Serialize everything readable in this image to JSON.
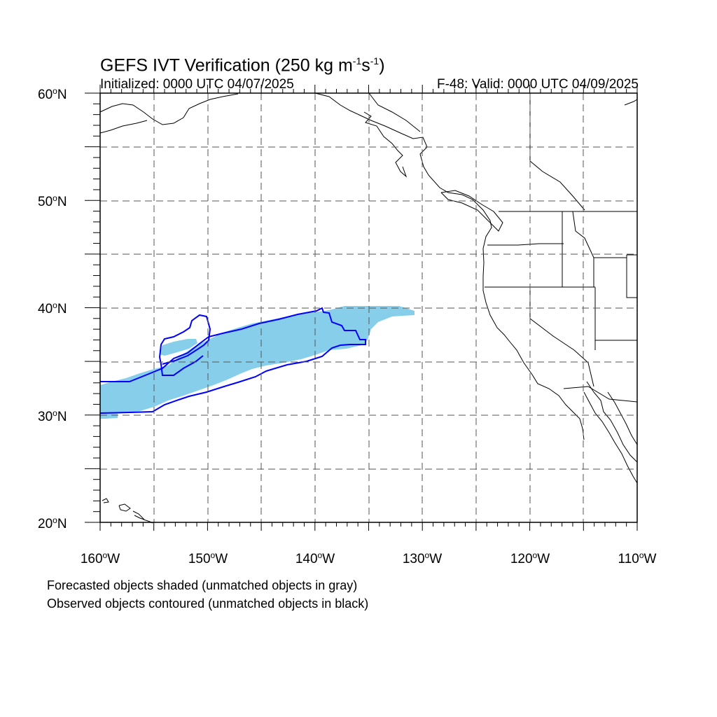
{
  "title": {
    "main": "GEFS IVT Verification (250 kg m",
    "exp1": "-1",
    "mid": "s",
    "exp2": "-1",
    "close": ")"
  },
  "subtitle_left": "Initialized: 0000 UTC 04/07/2025",
  "subtitle_right": "F-48: Valid: 0000 UTC 04/09/2025",
  "lat_labels": [
    {
      "num": "60",
      "hem": "N"
    },
    {
      "num": "50",
      "hem": "N"
    },
    {
      "num": "40",
      "hem": "N"
    },
    {
      "num": "30",
      "hem": "N"
    },
    {
      "num": "20",
      "hem": "N"
    }
  ],
  "lon_labels": [
    {
      "num": "160",
      "hem": "W"
    },
    {
      "num": "150",
      "hem": "W"
    },
    {
      "num": "140",
      "hem": "W"
    },
    {
      "num": "130",
      "hem": "W"
    },
    {
      "num": "120",
      "hem": "W"
    },
    {
      "num": "110",
      "hem": "W"
    }
  ],
  "notes": [
    "Forecasted objects shaded (unmatched objects in gray)",
    "Observed objects contoured (unmatched objects in black)"
  ],
  "colors": {
    "forecast_fill": "#87ceeb",
    "observed_contour": "#0000ff",
    "coastline": "#000000",
    "grid": "#555555"
  },
  "map": {
    "lon_range": [
      -160,
      -110
    ],
    "lat_range": [
      20,
      60
    ]
  }
}
